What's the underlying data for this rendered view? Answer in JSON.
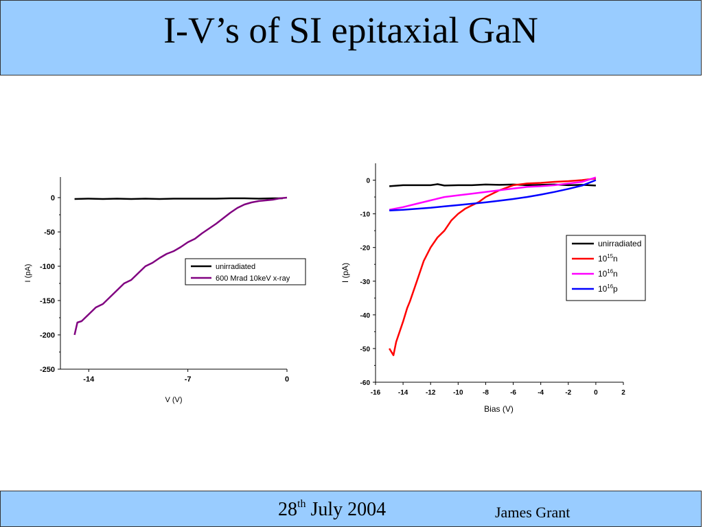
{
  "slide": {
    "title": "I-V’s of SI epitaxial GaN",
    "footer": {
      "date_day": "28",
      "date_suffix": "th",
      "date_rest": " July 2004",
      "author": "James Grant"
    }
  },
  "chart_data": [
    {
      "type": "line",
      "xlabel": "V (V)",
      "ylabel": "I (pA)",
      "xlim": [
        -16,
        0
      ],
      "ylim": [
        -250,
        30
      ],
      "xticks": [
        -14,
        -7,
        0
      ],
      "yticks": [
        0,
        -50,
        -100,
        -150,
        -200,
        -250
      ],
      "grid": false,
      "legend_position": "center-right",
      "series": [
        {
          "name": "unirradiated",
          "color": "#000000",
          "x": [
            -15,
            -14,
            -13,
            -12,
            -11,
            -10,
            -9,
            -8,
            -7,
            -6,
            -5,
            -4,
            -3,
            -2,
            -1,
            -0.3
          ],
          "y": [
            -2,
            -1.5,
            -2,
            -1.5,
            -2,
            -1.5,
            -2,
            -1.5,
            -1.5,
            -1.5,
            -1.5,
            -1,
            -1,
            -1.5,
            -1,
            -1
          ]
        },
        {
          "name": "600 Mrad 10keV  x-ray",
          "color": "#800080",
          "x": [
            -15,
            -14.8,
            -14.5,
            -14,
            -13.5,
            -13,
            -12.5,
            -12,
            -11.5,
            -11,
            -10.5,
            -10,
            -9.5,
            -9,
            -8.5,
            -8,
            -7.5,
            -7,
            -6.5,
            -6,
            -5.5,
            -5,
            -4.5,
            -4,
            -3.5,
            -3,
            -2.5,
            -2,
            -1.5,
            -1,
            -0.5,
            0
          ],
          "y": [
            -200,
            -182,
            -180,
            -170,
            -160,
            -155,
            -145,
            -135,
            -125,
            -120,
            -110,
            -100,
            -95,
            -88,
            -82,
            -78,
            -72,
            -65,
            -60,
            -52,
            -45,
            -38,
            -30,
            -22,
            -15,
            -10,
            -7,
            -5,
            -4,
            -3,
            -1,
            0
          ]
        }
      ]
    },
    {
      "type": "line",
      "xlabel": "Bias (V)",
      "ylabel": "I (pA)",
      "xlim": [
        -16,
        2
      ],
      "ylim": [
        -60,
        5
      ],
      "xticks": [
        -16,
        -14,
        -12,
        -10,
        -8,
        -6,
        -4,
        -2,
        0,
        2
      ],
      "yticks": [
        0,
        -10,
        -20,
        -30,
        -40,
        -50,
        -60
      ],
      "grid": false,
      "legend_position": "right",
      "series": [
        {
          "name": "unirradiated",
          "name_base": "unirradiated",
          "name_sup": "",
          "name_suffix": "",
          "color": "#000000",
          "x": [
            -15,
            -14,
            -13,
            -12,
            -11.5,
            -11,
            -10,
            -9,
            -8,
            -7,
            -6,
            -5,
            -4,
            -3,
            -2,
            -1,
            0
          ],
          "y": [
            -1.8,
            -1.5,
            -1.5,
            -1.5,
            -1.2,
            -1.6,
            -1.5,
            -1.5,
            -1.3,
            -1.4,
            -1.3,
            -1.5,
            -1.4,
            -1.3,
            -1.5,
            -1.4,
            -1.6
          ]
        },
        {
          "name": "10^15 n",
          "name_base": "10",
          "name_sup": "15",
          "name_suffix": "n",
          "color": "#ff0000",
          "x": [
            -15,
            -14.7,
            -14.5,
            -14,
            -13.7,
            -13.5,
            -13,
            -12.5,
            -12,
            -11.5,
            -11,
            -10.5,
            -10,
            -9.5,
            -9,
            -8.5,
            -8,
            -7,
            -6,
            -5,
            -4,
            -3,
            -2,
            -1,
            0
          ],
          "y": [
            -50,
            -52,
            -48,
            -42,
            -38,
            -36,
            -30,
            -24,
            -20,
            -17,
            -15,
            -12,
            -10,
            -8.5,
            -7.5,
            -6.5,
            -5,
            -3,
            -1.5,
            -1,
            -0.8,
            -0.5,
            -0.3,
            0,
            0.5
          ]
        },
        {
          "name": "10^16 n",
          "name_base": "10",
          "name_sup": "16",
          "name_suffix": "n",
          "color": "#ff00ff",
          "x": [
            -15,
            -14,
            -13,
            -12,
            -11,
            -10,
            -9,
            -8,
            -7,
            -6,
            -5,
            -4,
            -3,
            -2,
            -1,
            0
          ],
          "y": [
            -8.8,
            -8,
            -7,
            -6,
            -5,
            -4.5,
            -4,
            -3.5,
            -3,
            -2.5,
            -2,
            -1.8,
            -1.5,
            -1,
            -0.5,
            0.8
          ]
        },
        {
          "name": "10^16 p",
          "name_base": "10",
          "name_sup": "16",
          "name_suffix": "p",
          "color": "#0000ff",
          "x": [
            -15,
            -14,
            -13,
            -12,
            -11,
            -10,
            -9,
            -8,
            -7,
            -6,
            -5,
            -4,
            -3,
            -2,
            -1,
            0
          ],
          "y": [
            -9,
            -8.8,
            -8.5,
            -8.2,
            -7.8,
            -7.4,
            -7,
            -6.6,
            -6.1,
            -5.6,
            -5,
            -4.3,
            -3.5,
            -2.6,
            -1.6,
            0
          ]
        }
      ]
    }
  ]
}
